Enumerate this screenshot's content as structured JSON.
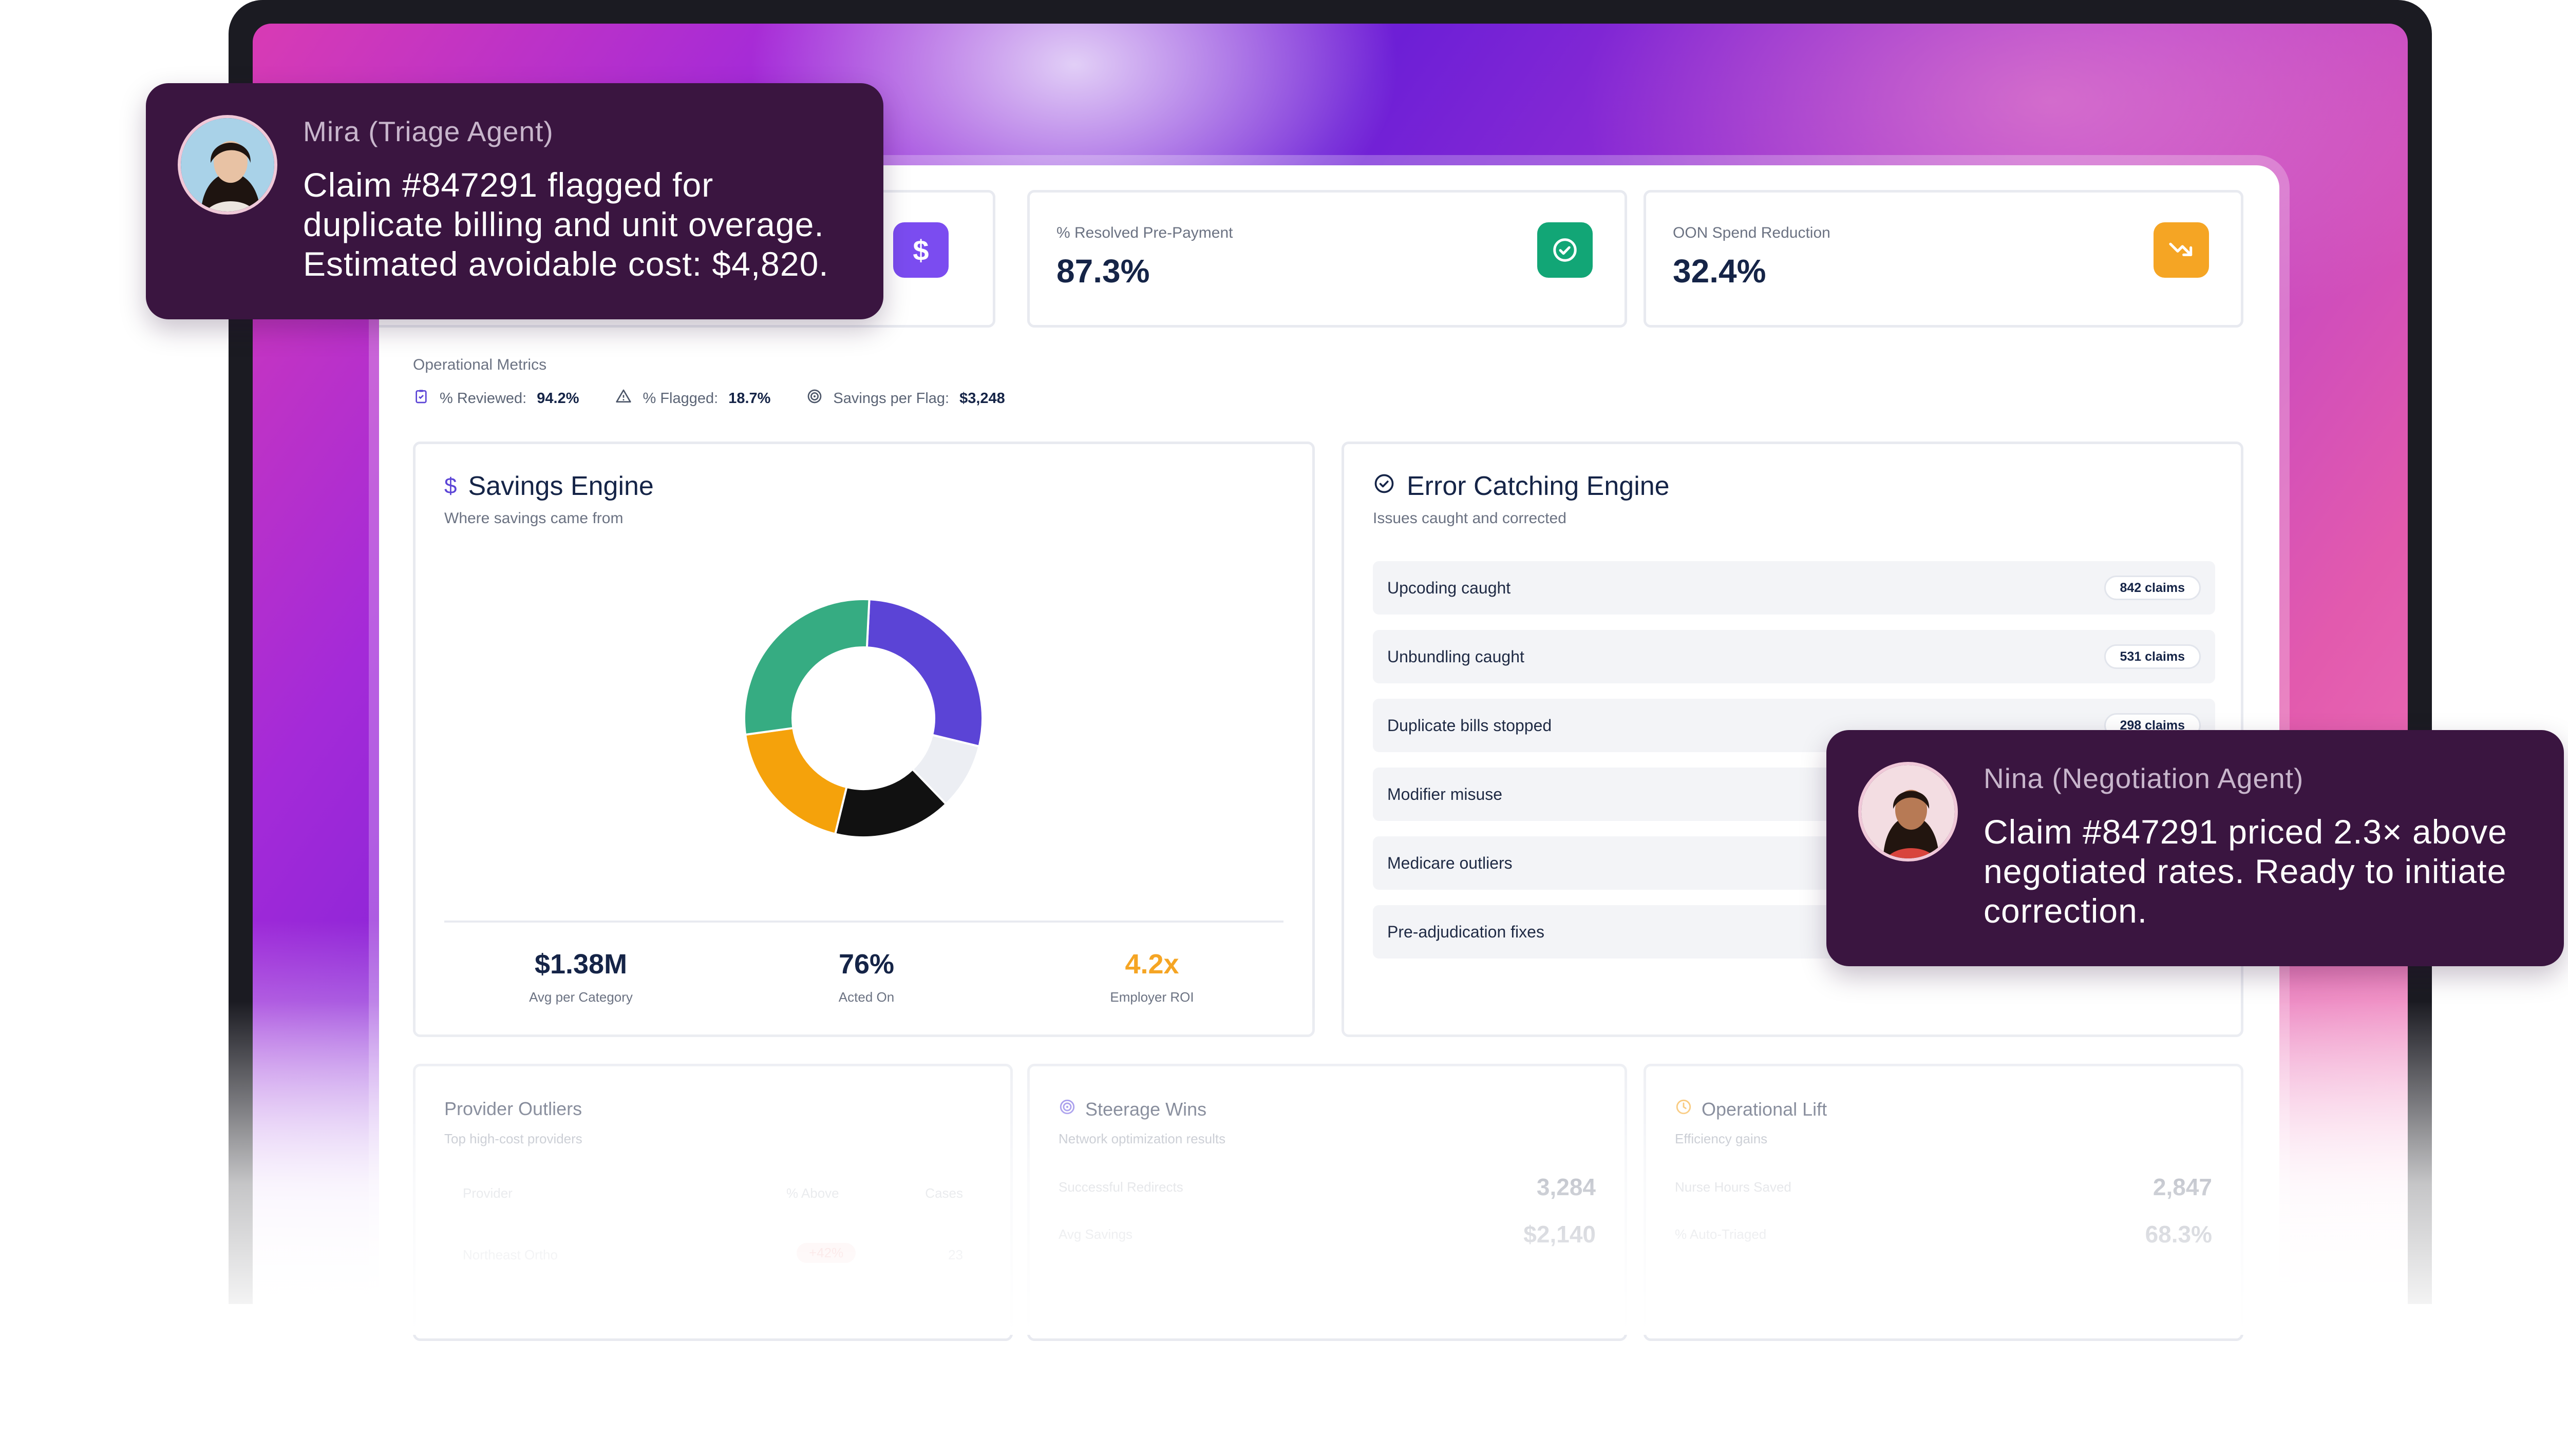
{
  "kpis": [
    {
      "label": "% Resolved Pre-Payment",
      "value": "87.3%",
      "icon": "check-circle-icon",
      "color": "#12a676"
    },
    {
      "label": "OON Spend Reduction",
      "value": "32.4%",
      "icon": "trending-down-icon",
      "color": "#f5a524"
    }
  ],
  "hidden_kpi_icon": {
    "icon": "dollar-icon",
    "color": "#7b4cf0",
    "glyph": "$"
  },
  "operational_metrics": {
    "title": "Operational Metrics",
    "items": [
      {
        "label": "% Reviewed:",
        "value": "94.2%",
        "icon": "clipboard-check-icon"
      },
      {
        "label": "% Flagged:",
        "value": "18.7%",
        "icon": "warning-icon"
      },
      {
        "label": "Savings per Flag:",
        "value": "$3,248",
        "icon": "target-icon"
      }
    ]
  },
  "savings_engine": {
    "icon": "dollar-icon",
    "title": "Savings Engine",
    "subtitle": "Where savings came from",
    "stats": [
      {
        "value": "$1.38M",
        "label": "Avg per Category",
        "color": "#152447"
      },
      {
        "value": "76%",
        "label": "Acted On",
        "color": "#152447"
      },
      {
        "value": "4.2x",
        "label": "Employer ROI",
        "color": "#f5a524"
      }
    ]
  },
  "chart_data": {
    "type": "pie",
    "values": [
      28,
      9,
      16,
      19,
      28
    ],
    "colors": [
      "#5b44d6",
      "#eceef3",
      "#111111",
      "#f5a20b",
      "#36ac82"
    ]
  },
  "error_engine": {
    "icon": "check-circle-icon",
    "title": "Error Catching Engine",
    "subtitle": "Issues caught and corrected",
    "rows": [
      {
        "name": "Upcoding caught",
        "badge": "842 claims"
      },
      {
        "name": "Unbundling caught",
        "badge": "531 claims"
      },
      {
        "name": "Duplicate bills stopped",
        "badge": "298 claims"
      },
      {
        "name": "Modifier misuse",
        "badge": ""
      },
      {
        "name": "Medicare outliers",
        "badge": ""
      },
      {
        "name": "Pre-adjudication fixes",
        "badge": ""
      }
    ]
  },
  "provider_outliers": {
    "title": "Provider Outliers",
    "subtitle": "Top high-cost providers",
    "columns": [
      "Provider",
      "% Above",
      "Cases"
    ],
    "rows": [
      {
        "provider": "Northeast Ortho",
        "above": "+42%",
        "cases": "23"
      }
    ]
  },
  "steerage_wins": {
    "icon": "target-icon",
    "title": "Steerage Wins",
    "subtitle": "Network optimization results",
    "metrics": [
      {
        "label": "Successful Redirects",
        "value": "3,284"
      },
      {
        "label": "Avg Savings",
        "value": "$2,140"
      }
    ]
  },
  "operational_lift": {
    "icon": "clock-icon",
    "title": "Operational Lift",
    "subtitle": "Efficiency gains",
    "metrics": [
      {
        "label": "Nurse Hours Saved",
        "value": "2,847"
      },
      {
        "label": "% Auto-Triaged",
        "value": "68.3%"
      }
    ]
  },
  "chat": {
    "mira": {
      "agent": "Mira (Triage Agent)",
      "lines": [
        "Claim #847291 flagged for",
        "duplicate billing and unit overage.",
        "Estimated avoidable cost: $4,820."
      ]
    },
    "nina": {
      "agent": "Nina (Negotiation Agent)",
      "lines": [
        "Claim #847291 priced 2.3× above",
        "negotiated rates. Ready to initiate",
        "correction."
      ]
    }
  }
}
